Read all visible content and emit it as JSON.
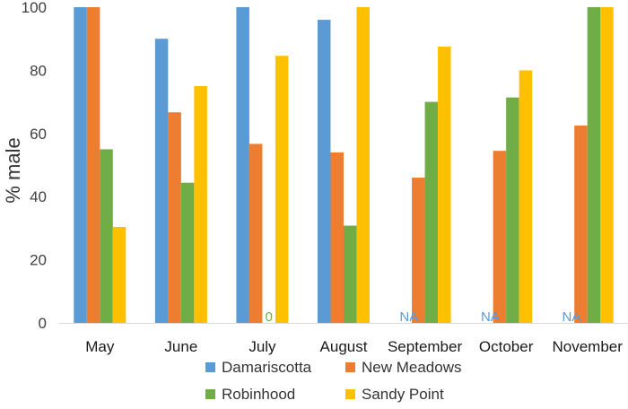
{
  "chart_data": {
    "type": "bar",
    "title": "",
    "xlabel": "",
    "ylabel": "% male",
    "ylim": [
      0,
      100
    ],
    "yticks": [
      0,
      20,
      40,
      60,
      80,
      100
    ],
    "grid": false,
    "legend_position": "bottom",
    "categories": [
      "May",
      "June",
      "July",
      "August",
      "September",
      "October",
      "November"
    ],
    "series": [
      {
        "name": "Damariscotta",
        "color": "#5B9BD5",
        "values": [
          100,
          90,
          100,
          96,
          null,
          null,
          null
        ]
      },
      {
        "name": "New Meadows",
        "color": "#ED7D31",
        "values": [
          100,
          66.7,
          56.7,
          54,
          46,
          54.5,
          62.5
        ]
      },
      {
        "name": "Robinhood",
        "color": "#70AD47",
        "values": [
          55,
          44.4,
          0,
          30.8,
          70,
          71.4,
          100
        ]
      },
      {
        "name": "Sandy Point",
        "color": "#FFC000",
        "values": [
          30.4,
          75,
          84.6,
          100,
          87.5,
          80,
          100
        ]
      }
    ],
    "annotations": [
      {
        "category": "July",
        "series": "Robinhood",
        "text": "0",
        "color": "#70AD47"
      },
      {
        "category": "September",
        "series": "Damariscotta",
        "text": "NA",
        "color": "#5B9BD5"
      },
      {
        "category": "October",
        "series": "Damariscotta",
        "text": "NA",
        "color": "#5B9BD5"
      },
      {
        "category": "November",
        "series": "Damariscotta",
        "text": "NA",
        "color": "#5B9BD5"
      }
    ]
  }
}
